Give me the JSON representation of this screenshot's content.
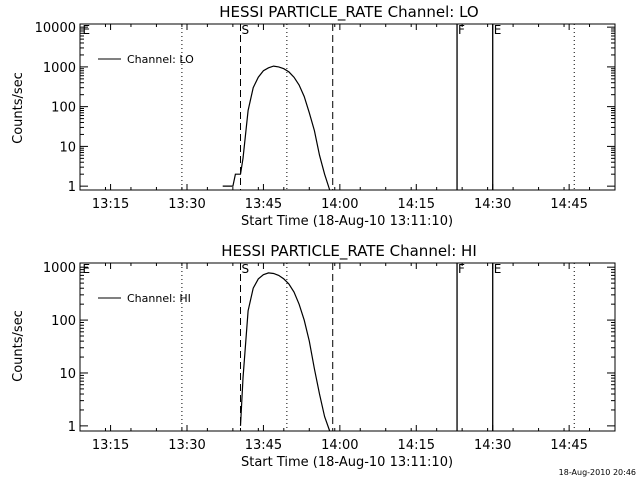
{
  "chart_data": [
    {
      "type": "line",
      "title": "HESSI PARTICLE_RATE Channel: LO",
      "xlabel": "Start Time (18-Aug-10 13:11:10)",
      "ylabel": "Counts/sec",
      "yscale": "log",
      "ylim": [
        0.8,
        12000
      ],
      "xlim": [
        13.15,
        14.9
      ],
      "x_ticks": [
        "13:15",
        "13:30",
        "13:45",
        "14:00",
        "14:15",
        "14:30",
        "14:45"
      ],
      "y_ticks": [
        "1",
        "10",
        "100",
        "1000",
        "10000"
      ],
      "legend": "top-left",
      "series": [
        {
          "name": "Channel: LO",
          "x": [
            "13:37",
            "13:39",
            "13:39.5",
            "13:40",
            "13:40.5",
            "13:41",
            "13:42",
            "13:43",
            "13:44",
            "13:45",
            "13:46",
            "13:47",
            "13:48",
            "13:49",
            "13:50",
            "13:51",
            "13:52",
            "13:53",
            "13:54",
            "13:55",
            "13:56",
            "13:57",
            "13:58"
          ],
          "values": [
            1,
            1,
            2,
            2,
            2,
            5,
            80,
            300,
            550,
            800,
            950,
            1050,
            1000,
            900,
            750,
            550,
            350,
            180,
            70,
            25,
            6,
            2,
            0.8
          ]
        }
      ],
      "dotted_lines": [
        "13:29",
        "13:49.6",
        "14:46"
      ],
      "dashed_lines": [
        "13:40.5",
        "13:58.6"
      ],
      "solid_lines": [
        "14:23",
        "14:30"
      ],
      "markers": [
        "E",
        "S",
        "F",
        "E"
      ]
    },
    {
      "type": "line",
      "title": "HESSI PARTICLE_RATE Channel: HI",
      "xlabel": "Start Time (18-Aug-10 13:11:10)",
      "ylabel": "Counts/sec",
      "yscale": "log",
      "ylim": [
        0.8,
        1200
      ],
      "xlim": [
        13.15,
        14.9
      ],
      "x_ticks": [
        "13:15",
        "13:30",
        "13:45",
        "14:00",
        "14:15",
        "14:30",
        "14:45"
      ],
      "y_ticks": [
        "1",
        "10",
        "100",
        "1000"
      ],
      "legend": "top-left",
      "series": [
        {
          "name": "Channel: HI",
          "x": [
            "13:40.5",
            "13:41",
            "13:42",
            "13:43",
            "13:44",
            "13:45",
            "13:46",
            "13:47",
            "13:48",
            "13:49",
            "13:50",
            "13:51",
            "13:52",
            "13:53",
            "13:54",
            "13:55",
            "13:56",
            "13:57",
            "13:58"
          ],
          "values": [
            1,
            8,
            150,
            400,
            600,
            720,
            780,
            760,
            700,
            600,
            480,
            340,
            200,
            100,
            40,
            12,
            4,
            1.5,
            0.8
          ]
        }
      ],
      "dotted_lines": [
        "13:29",
        "13:49.6",
        "14:46"
      ],
      "dashed_lines": [
        "13:40.5",
        "13:58.6"
      ],
      "solid_lines": [
        "14:23",
        "14:30"
      ],
      "markers": [
        "E",
        "S",
        "F",
        "E"
      ]
    }
  ],
  "timestamp": "18-Aug-2010 20:46"
}
